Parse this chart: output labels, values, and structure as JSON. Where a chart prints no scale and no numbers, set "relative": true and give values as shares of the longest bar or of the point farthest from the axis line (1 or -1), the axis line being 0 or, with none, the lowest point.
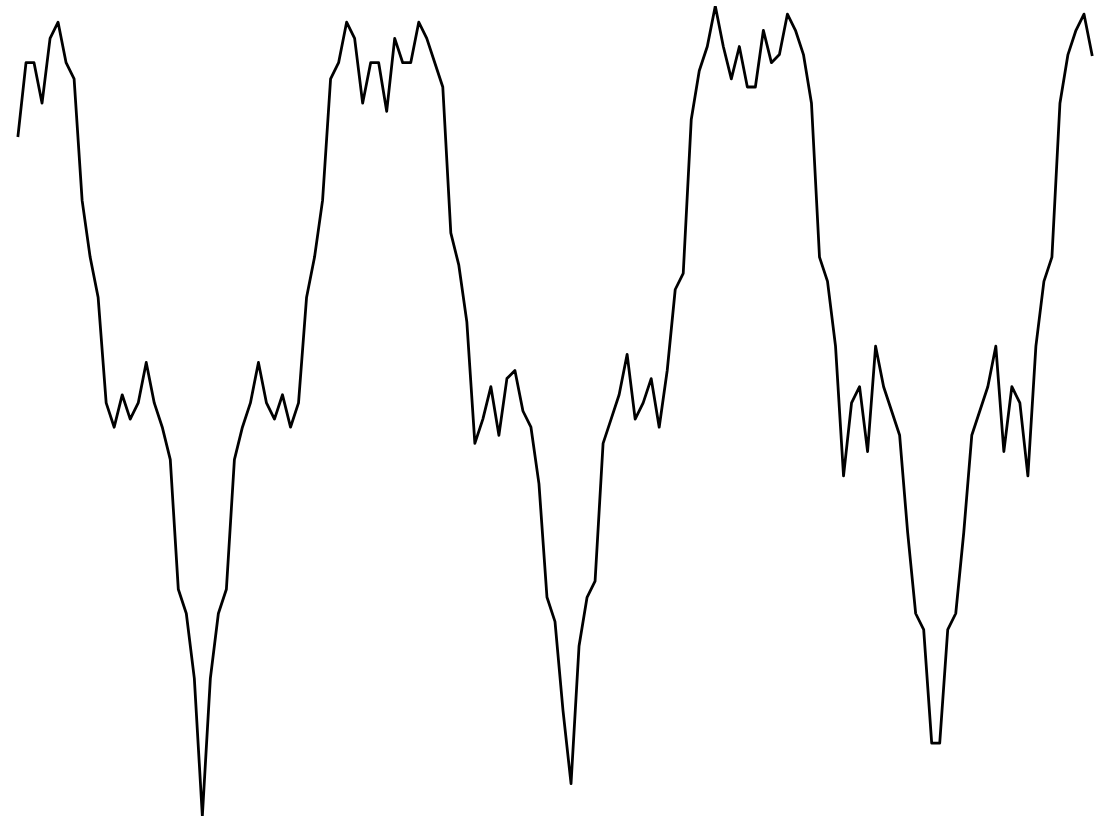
{
  "chart_data": {
    "type": "line",
    "relative": true,
    "categories": [
      null,
      null,
      null,
      null,
      null,
      null,
      null,
      null,
      null,
      null,
      null,
      null,
      null,
      null,
      null,
      null,
      null,
      null,
      null,
      null,
      null,
      null,
      null,
      null,
      null,
      null,
      null,
      null,
      null,
      null,
      null,
      null,
      null,
      null,
      null,
      null,
      null,
      null,
      null,
      null,
      null,
      null,
      null,
      null,
      null,
      null,
      null,
      null,
      null,
      null,
      null,
      null,
      null,
      null,
      null,
      null,
      null,
      null,
      null,
      null,
      null,
      null,
      null,
      null,
      null,
      null,
      null,
      null,
      null,
      null,
      null,
      null,
      null,
      null,
      null,
      null,
      null,
      null,
      null,
      null,
      null,
      null,
      null,
      null,
      null,
      null,
      null,
      null,
      null,
      null,
      null,
      null,
      null,
      null,
      null,
      null,
      null,
      null,
      null,
      null,
      null,
      null,
      null,
      null,
      null,
      null,
      null,
      null,
      null,
      null,
      null,
      null,
      null,
      null,
      null,
      null,
      null,
      null,
      null,
      null,
      null,
      null,
      null,
      null,
      null,
      null,
      null,
      null,
      null,
      null,
      null,
      null,
      null,
      null,
      null
    ],
    "series": [
      {
        "color": "#000000",
        "values": [
          0.84,
          0.93,
          0.93,
          0.88,
          0.96,
          0.98,
          0.93,
          0.91,
          0.76,
          0.69,
          0.64,
          0.51,
          0.48,
          0.52,
          0.49,
          0.51,
          0.56,
          0.51,
          0.48,
          0.44,
          0.28,
          0.25,
          0.17,
          0.0,
          0.17,
          0.25,
          0.28,
          0.44,
          0.48,
          0.51,
          0.56,
          0.51,
          0.49,
          0.52,
          0.48,
          0.51,
          0.64,
          0.69,
          0.76,
          0.91,
          0.93,
          0.98,
          0.96,
          0.88,
          0.93,
          0.93,
          0.87,
          0.96,
          0.93,
          0.93,
          0.98,
          0.96,
          0.93,
          0.9,
          0.72,
          0.68,
          0.61,
          0.46,
          0.49,
          0.53,
          0.47,
          0.54,
          0.55,
          0.5,
          0.48,
          0.41,
          0.27,
          0.24,
          0.13,
          0.04,
          0.21,
          0.27,
          0.29,
          0.46,
          0.49,
          0.52,
          0.57,
          0.49,
          0.51,
          0.54,
          0.48,
          0.55,
          0.65,
          0.67,
          0.86,
          0.92,
          0.95,
          1.0,
          0.95,
          0.91,
          0.95,
          0.9,
          0.9,
          0.97,
          0.93,
          0.94,
          0.99,
          0.97,
          0.94,
          0.88,
          0.69,
          0.66,
          0.58,
          0.42,
          0.51,
          0.53,
          0.45,
          0.58,
          0.53,
          0.5,
          0.47,
          0.35,
          0.25,
          0.23,
          0.09,
          0.09,
          0.23,
          0.25,
          0.35,
          0.47,
          0.5,
          0.53,
          0.58,
          0.45,
          0.53,
          0.51,
          0.42,
          0.58,
          0.66,
          0.69,
          0.88,
          0.94,
          0.97,
          0.99,
          0.94
        ]
      }
    ],
    "marker": "none",
    "line_style": "solid",
    "grid": false,
    "legend": false
  }
}
